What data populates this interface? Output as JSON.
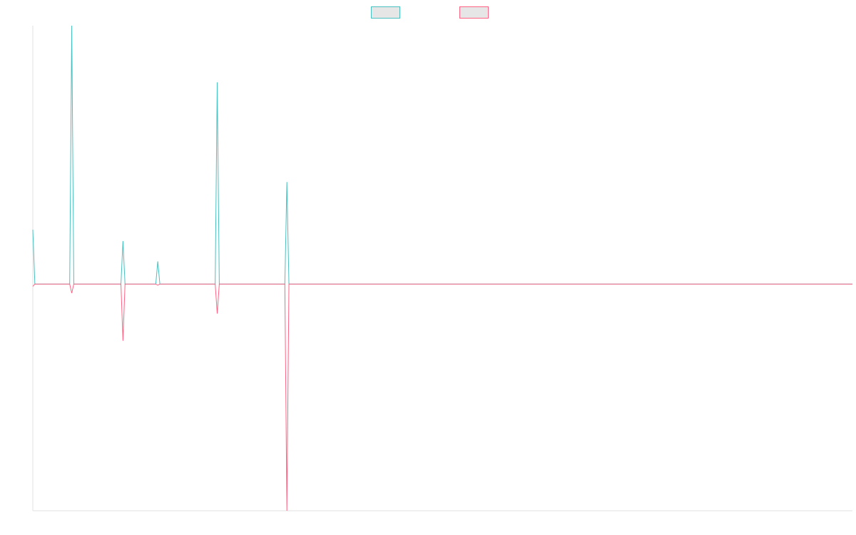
{
  "chart_data": {
    "type": "line",
    "title": "",
    "xlabel": "",
    "ylabel": "",
    "legend": {
      "placement": "top-center"
    },
    "grid": false,
    "x": [
      0,
      1,
      18,
      19,
      20,
      43,
      44,
      45,
      60,
      61,
      62,
      89,
      90,
      91,
      123,
      124,
      125,
      400
    ],
    "xlim": [
      0,
      400
    ],
    "ylim": [
      -100,
      114
    ],
    "series": [
      {
        "name": "",
        "color": "#4bc0c0",
        "values": [
          24,
          0,
          0,
          114,
          0,
          0,
          19,
          0,
          0,
          10,
          0,
          0,
          89,
          0,
          0,
          45,
          0,
          0
        ]
      },
      {
        "name": "",
        "color": "#ff6384",
        "values": [
          -1,
          0,
          0,
          -4,
          0,
          0,
          -25,
          0,
          0,
          -0.5,
          0,
          0,
          -13,
          0,
          0,
          -100,
          0,
          0
        ]
      }
    ]
  }
}
